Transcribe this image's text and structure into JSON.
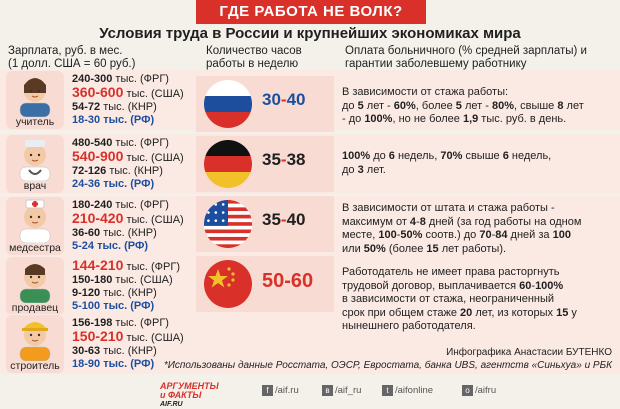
{
  "banner": "ГДЕ РАБОТА НЕ ВОЛК?",
  "title": "Условия труда в России и крупнейших экономиках мира",
  "headers": {
    "salary_line1": "Зарплата, руб. в мес.",
    "salary_line2": "(1 долл. США = 60 руб.)",
    "hours_line1": "Количество часов",
    "hours_line2": "работы в неделю",
    "leave_line1": "Оплата больничного (% средней зарплаты) и",
    "leave_line2": "гарантии заболевшему работнику"
  },
  "professions": [
    {
      "role": "учитель",
      "salaries": [
        {
          "val": "240-300",
          "unit": " тыс. (ФРГ)",
          "color": "#1f1f1f",
          "big": false
        },
        {
          "val": "360-600",
          "unit": " тыс. (США)",
          "color": "#d9312a",
          "big": true
        },
        {
          "val": "54-72",
          "unit": " тыс. (КНР)",
          "color": "#1f1f1f",
          "big": false
        },
        {
          "val": "18-30",
          "unit": " тыс. (РФ)",
          "color": "#1d4e9e",
          "big": false
        }
      ]
    },
    {
      "role": "врач",
      "salaries": [
        {
          "val": "480-540",
          "unit": " тыс. (ФРГ)",
          "color": "#1f1f1f",
          "big": false
        },
        {
          "val": "540-900",
          "unit": " тыс. (США)",
          "color": "#d9312a",
          "big": true
        },
        {
          "val": "72-126",
          "unit": " тыс. (КНР)",
          "color": "#1f1f1f",
          "big": false
        },
        {
          "val": "24-36",
          "unit": " тыс. (РФ)",
          "color": "#1d4e9e",
          "big": false
        }
      ]
    },
    {
      "role": "медсестра",
      "salaries": [
        {
          "val": "180-240",
          "unit": " тыс. (ФРГ)",
          "color": "#1f1f1f",
          "big": false
        },
        {
          "val": "210-420",
          "unit": " тыс. (США)",
          "color": "#d9312a",
          "big": true
        },
        {
          "val": "36-60",
          "unit": " тыс. (КНР)",
          "color": "#1f1f1f",
          "big": false
        },
        {
          "val": "5-24",
          "unit": " тыс. (РФ)",
          "color": "#1d4e9e",
          "big": false
        }
      ]
    },
    {
      "role": "продавец",
      "salaries": [
        {
          "val": "144-210",
          "unit": " тыс. (ФРГ)",
          "color": "#d9312a",
          "big": true
        },
        {
          "val": "150-180",
          "unit": " тыс. (США)",
          "color": "#1f1f1f",
          "big": false
        },
        {
          "val": "9-120",
          "unit": " тыс. (КНР)",
          "color": "#1f1f1f",
          "big": false
        },
        {
          "val": "5-100",
          "unit": " тыс. (РФ)",
          "color": "#1d4e9e",
          "big": false
        }
      ]
    },
    {
      "role": "строитель",
      "salaries": [
        {
          "val": "156-198",
          "unit": " тыс. (ФРГ)",
          "color": "#1f1f1f",
          "big": false
        },
        {
          "val": "150-210",
          "unit": " тыс. (США)",
          "color": "#d9312a",
          "big": true
        },
        {
          "val": "30-63",
          "unit": " тыс. (КНР)",
          "color": "#1f1f1f",
          "big": false
        },
        {
          "val": "18-90",
          "unit": " тыс. (РФ)",
          "color": "#1d4e9e",
          "big": false
        }
      ]
    }
  ],
  "countries": [
    {
      "flag": "russia",
      "hours_a": "30",
      "hours_sep": "-",
      "hours_b": "40",
      "hours_color": "#1d4e9e",
      "leave": [
        "В зависимости от стажа работы:",
        "до 5 лет - 60%, более 5 лет - 80%, свыше 8 лет",
        "- до 100%, но не более 1,9 тыс. руб. в день."
      ]
    },
    {
      "flag": "germany",
      "hours_a": "35",
      "hours_sep": "-",
      "hours_b": "38",
      "hours_color": "#1f1f1f",
      "leave": [
        "100% до 6 недель, 70% свыше 6 недель,",
        "до 3 лет."
      ]
    },
    {
      "flag": "usa",
      "hours_a": "35",
      "hours_sep": "-",
      "hours_b": "40",
      "hours_color": "#1f1f1f",
      "leave": [
        "В зависимости от штата и стажа работы -",
        "максимум от 4-8 дней (за год работы на одном",
        "месте, 100-50% соотв.) до 70-84 дней за 100",
        "или 50% (более 15 лет работы)."
      ]
    },
    {
      "flag": "china",
      "hours_a": "50",
      "hours_sep": "-",
      "hours_b": "60",
      "hours_color": "#d9312a",
      "leave": [
        "Работодатель не имеет права расторгнуть",
        "трудовой договор, выплачивается 60-100%",
        "в зависимости от стажа, неограниченный",
        "срок при общем стаже 20 лет, из которых 15 у",
        "нынешнего работодателя."
      ]
    }
  ],
  "credit": "Инфографика Анастасии БУТЕНКО",
  "sources": "*Использованы данные Росстата, ОЭСР, Евростата, банка UBS, агентств «Синьхуа» и РБК",
  "logo": {
    "line1": "АРГУМЕНТЫ",
    "line2": "и ФАКТЫ",
    "site": "AIF.RU"
  },
  "social": [
    {
      "icon": "facebook-icon",
      "glyph": "f",
      "text": "/aif.ru"
    },
    {
      "icon": "vk-icon",
      "glyph": "в",
      "text": "/aif_ru"
    },
    {
      "icon": "twitter-icon",
      "glyph": "t",
      "text": "/aifonline"
    },
    {
      "icon": "odnoklassniki-icon",
      "glyph": "о",
      "text": "/aifru"
    }
  ],
  "colors": {
    "red": "#d9312a",
    "blue": "#1d4e9e",
    "pink": "#f8dcd3",
    "lightpink": "#fbeae4"
  }
}
